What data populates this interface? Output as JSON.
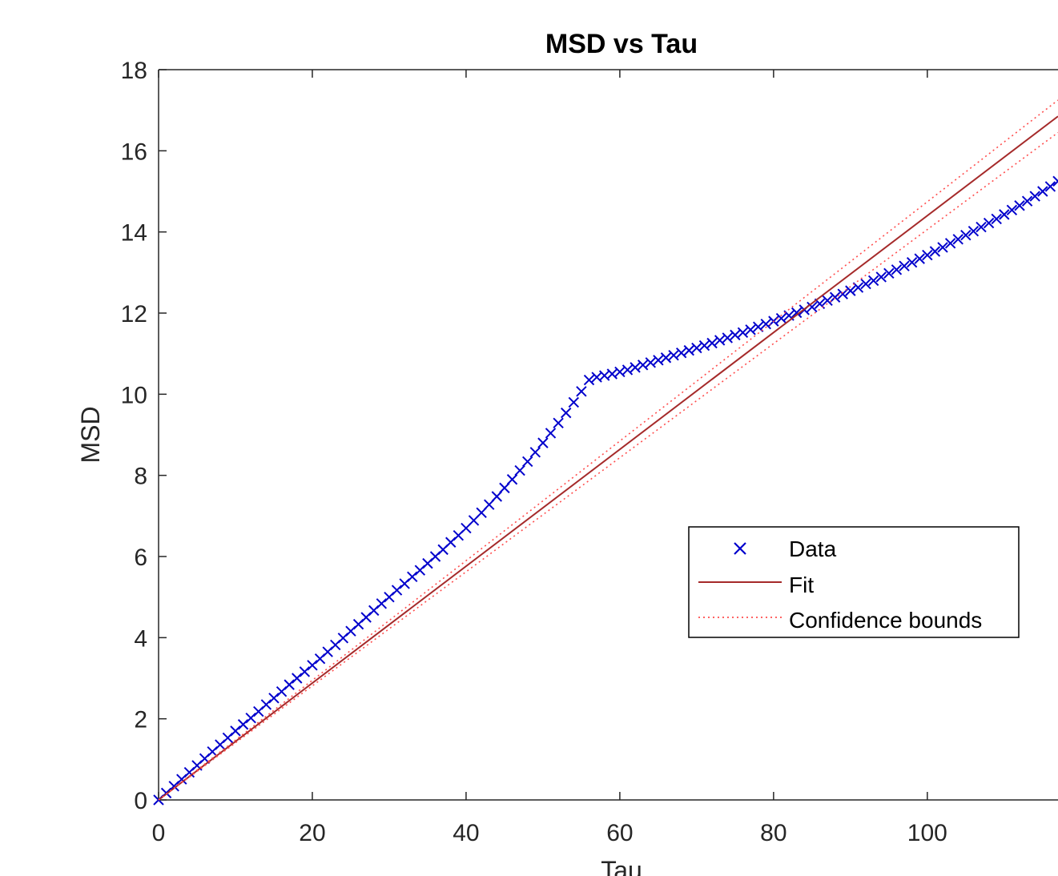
{
  "chart_data": {
    "type": "scatter",
    "title": "MSD vs Tau",
    "xlabel": "Tau",
    "ylabel": "MSD",
    "xlim": [
      0,
      117
    ],
    "ylim": [
      0,
      18
    ],
    "xticks": [
      0,
      20,
      40,
      60,
      80,
      100
    ],
    "yticks": [
      0,
      2,
      4,
      6,
      8,
      10,
      12,
      14,
      16,
      18
    ],
    "grid": false,
    "legend_position": "center-right",
    "series": [
      {
        "name": "Data",
        "style": "marker-x",
        "color": "#0000cc",
        "x": [
          0,
          1,
          2,
          3,
          4,
          5,
          6,
          7,
          8,
          9,
          10,
          11,
          12,
          13,
          14,
          15,
          16,
          17,
          18,
          19,
          20,
          21,
          22,
          23,
          24,
          25,
          26,
          27,
          28,
          29,
          30,
          31,
          32,
          33,
          34,
          35,
          36,
          37,
          38,
          39,
          40,
          41,
          42,
          43,
          44,
          45,
          46,
          47,
          48,
          49,
          50,
          51,
          52,
          53,
          54,
          55,
          56,
          57,
          58,
          59,
          60,
          61,
          62,
          63,
          64,
          65,
          66,
          67,
          68,
          69,
          70,
          71,
          72,
          73,
          74,
          75,
          76,
          77,
          78,
          79,
          80,
          81,
          82,
          83,
          84,
          85,
          86,
          87,
          88,
          89,
          90,
          91,
          92,
          93,
          94,
          95,
          96,
          97,
          98,
          99,
          100,
          101,
          102,
          103,
          104,
          105,
          106,
          107,
          108,
          109,
          110,
          111,
          112,
          113,
          114,
          115,
          116,
          117
        ],
        "y": [
          0.0,
          0.17,
          0.34,
          0.51,
          0.68,
          0.85,
          1.02,
          1.19,
          1.36,
          1.53,
          1.7,
          1.86,
          2.02,
          2.18,
          2.35,
          2.51,
          2.67,
          2.84,
          3.0,
          3.16,
          3.32,
          3.48,
          3.65,
          3.82,
          3.99,
          4.16,
          4.33,
          4.5,
          4.67,
          4.84,
          5.0,
          5.17,
          5.33,
          5.5,
          5.66,
          5.83,
          6.0,
          6.17,
          6.35,
          6.52,
          6.7,
          6.89,
          7.08,
          7.28,
          7.48,
          7.69,
          7.9,
          8.12,
          8.34,
          8.57,
          8.8,
          9.04,
          9.29,
          9.54,
          9.8,
          10.07,
          10.35,
          10.42,
          10.46,
          10.5,
          10.55,
          10.6,
          10.66,
          10.72,
          10.78,
          10.84,
          10.9,
          10.96,
          11.02,
          11.08,
          11.14,
          11.2,
          11.26,
          11.33,
          11.39,
          11.46,
          11.52,
          11.59,
          11.66,
          11.73,
          11.8,
          11.87,
          11.94,
          12.01,
          12.08,
          12.15,
          12.23,
          12.31,
          12.39,
          12.47,
          12.55,
          12.63,
          12.72,
          12.8,
          12.89,
          12.98,
          13.07,
          13.16,
          13.25,
          13.34,
          13.43,
          13.52,
          13.62,
          13.72,
          13.82,
          13.92,
          14.02,
          14.12,
          14.22,
          14.32,
          14.43,
          14.54,
          14.65,
          14.76,
          14.88,
          15.0,
          15.12,
          15.25
        ]
      },
      {
        "name": "Fit",
        "style": "line",
        "color": "#a52a2a",
        "x": [
          0,
          117
        ],
        "y": [
          0,
          16.85
        ]
      },
      {
        "name": "Confidence bounds",
        "style": "dotted",
        "color": "#ff4d4d",
        "x": [
          0,
          117
        ],
        "y": [
          0,
          17.25
        ]
      },
      {
        "name": "Confidence bounds",
        "style": "dotted",
        "color": "#ff4d4d",
        "x": [
          0,
          117
        ],
        "y": [
          0,
          16.45
        ]
      }
    ],
    "legend": [
      "Data",
      "Fit",
      "Confidence bounds"
    ]
  }
}
